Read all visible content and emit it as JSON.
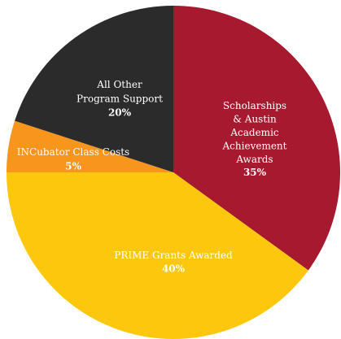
{
  "chart_data": {
    "type": "pie",
    "categories": [
      "Scholarships\n& Austin\nAcademic\nAchievement\nAwards",
      "PRIME Grants Awarded",
      "INCubator Class Costs",
      "All Other\nProgram Support"
    ],
    "values": [
      35,
      40,
      5,
      20
    ],
    "value_labels": [
      "35%",
      "40%",
      "5%",
      "20%"
    ],
    "colors": [
      "#a6192e",
      "#fcc70c",
      "#f7951d",
      "#2b2b2b"
    ]
  }
}
